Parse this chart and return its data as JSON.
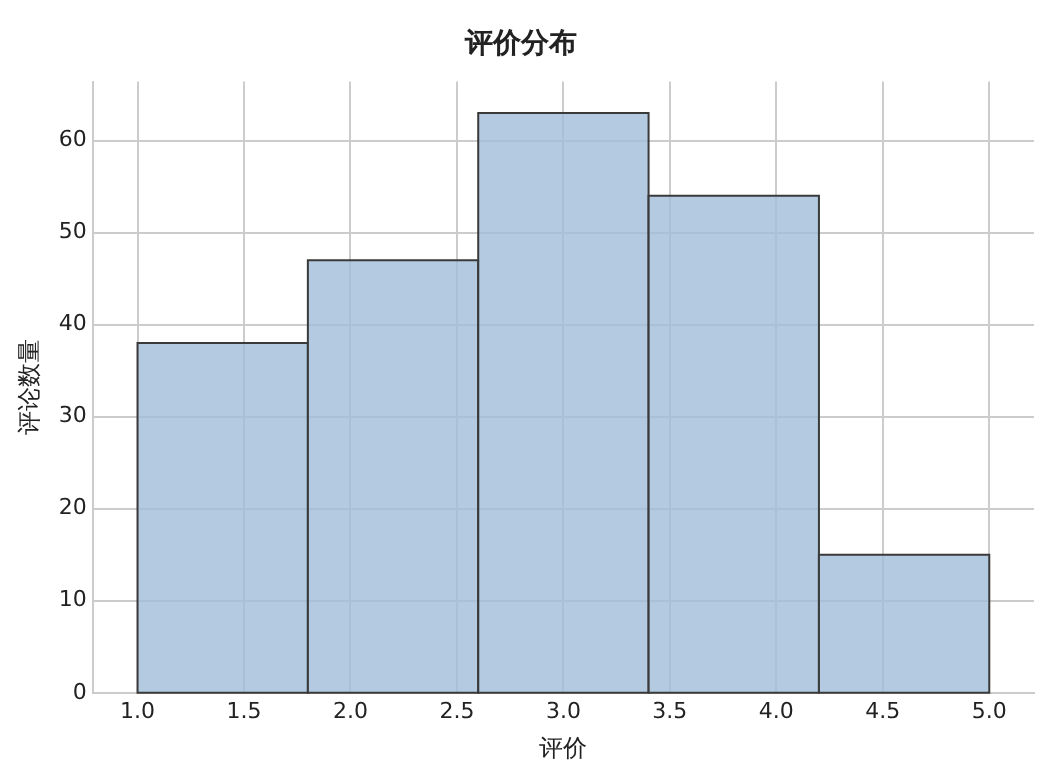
{
  "chart_data": {
    "type": "histogram",
    "title": "评价分布",
    "xlabel": "评价",
    "ylabel": "评论数量",
    "bins": [
      1,
      1.8,
      2.6,
      3.4,
      4.2,
      5
    ],
    "values": [
      38,
      47,
      63,
      54,
      15
    ],
    "color": "#a0bdd8",
    "xlim": [
      0.79,
      5.21
    ],
    "xticks": [
      {
        "value": 1,
        "label": "1.0"
      },
      {
        "value": 1.5,
        "label": "1.5"
      },
      {
        "value": 2,
        "label": "2.0"
      },
      {
        "value": 2.5,
        "label": "2.5"
      },
      {
        "value": 3,
        "label": "3.0"
      },
      {
        "value": 3.5,
        "label": "3.5"
      },
      {
        "value": 4,
        "label": "4.0"
      },
      {
        "value": 4.5,
        "label": "4.5"
      },
      {
        "value": 5,
        "label": "5.0"
      }
    ],
    "ylim": [
      0,
      66.4
    ],
    "yticks": [
      0,
      10,
      20,
      30,
      40,
      50,
      60
    ],
    "grid": true,
    "legend": false
  }
}
